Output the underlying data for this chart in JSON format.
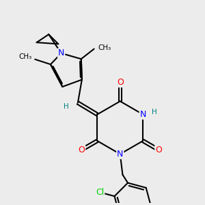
{
  "bg_color": "#ececec",
  "atom_colors": {
    "N": "#0000ff",
    "O": "#ff0000",
    "Cl": "#00cc00",
    "C": "#000000",
    "H": "#008080"
  },
  "bond_color": "#000000",
  "bond_width": 1.5,
  "font_size_atom": 9,
  "font_size_small": 7.5
}
